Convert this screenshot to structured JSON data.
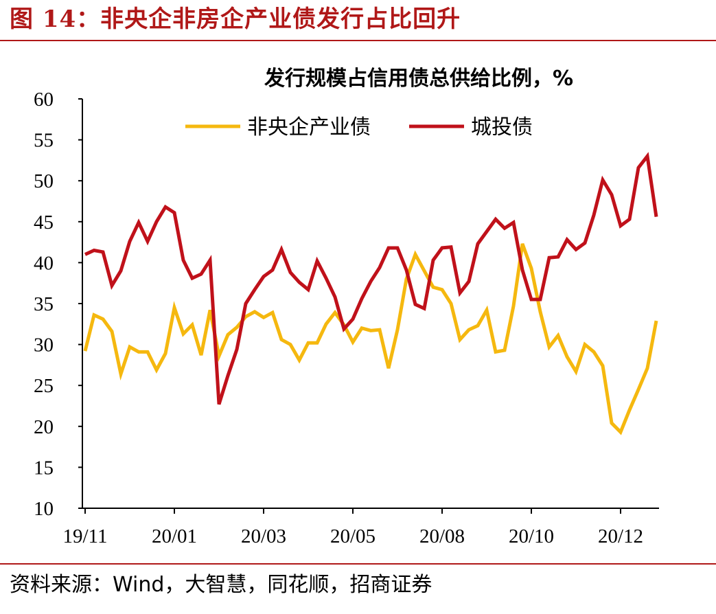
{
  "figure": {
    "label": "图 14：非央企非房企产业债发行占比回升",
    "source": "资料来源：Wind，大智慧，同花顺，招商证券"
  },
  "chart_data": {
    "type": "line",
    "title": "发行规模占信用债总供给比例，%",
    "xlabel": "",
    "ylabel": "",
    "ylim": [
      10,
      60
    ],
    "y_ticks": [
      "60",
      "55",
      "50",
      "45",
      "40",
      "35",
      "30",
      "25",
      "20",
      "15",
      "10"
    ],
    "x_tick_labels": [
      "19/11",
      "20/01",
      "20/03",
      "20/05",
      "20/08",
      "20/10",
      "20/12"
    ],
    "x_tick_indices": [
      0,
      10,
      20,
      30,
      40,
      50,
      60
    ],
    "grid": false,
    "legend_position": "top",
    "colors": {
      "非央企产业债": "#f5b80f",
      "城投债": "#c0111a"
    },
    "series": [
      {
        "name": "非央企产业债",
        "values": [
          29.2,
          33.6,
          33.1,
          31.6,
          26.4,
          29.7,
          29.1,
          29.1,
          26.9,
          28.9,
          34.5,
          31.3,
          32.4,
          28.7,
          34.2,
          28.6,
          31.2,
          32.1,
          33.4,
          34.0,
          33.3,
          33.9,
          30.6,
          30.0,
          28.1,
          30.2,
          30.2,
          32.5,
          33.9,
          32.4,
          30.3,
          32.0,
          31.7,
          31.8,
          27.1,
          31.8,
          38.0,
          41.0,
          39.0,
          37.0,
          36.7,
          35.0,
          30.6,
          31.8,
          32.3,
          34.2,
          29.1,
          29.3,
          34.7,
          42.3,
          39.3,
          34.0,
          29.7,
          31.1,
          28.5,
          26.7,
          30.0,
          29.1,
          27.4,
          20.4,
          19.3,
          22.0,
          24.5,
          27.1,
          32.9
        ]
      },
      {
        "name": "城投债",
        "values": [
          41.0,
          41.5,
          41.3,
          37.2,
          39.0,
          42.6,
          44.9,
          42.6,
          45.0,
          46.8,
          46.1,
          40.3,
          38.1,
          38.6,
          40.3,
          22.7,
          26.2,
          29.4,
          35.0,
          36.7,
          38.3,
          39.1,
          41.6,
          38.8,
          37.6,
          36.7,
          40.2,
          38.1,
          35.8,
          31.9,
          33.1,
          35.6,
          37.7,
          39.4,
          41.8,
          41.8,
          39.1,
          34.9,
          34.4,
          40.3,
          41.8,
          41.9,
          36.3,
          37.7,
          42.3,
          43.8,
          45.3,
          44.2,
          44.9,
          39.1,
          35.5,
          35.5,
          40.6,
          40.7,
          42.8,
          41.6,
          42.4,
          45.8,
          50.1,
          48.3,
          44.5,
          45.3,
          51.6,
          53.0,
          45.6
        ]
      }
    ]
  }
}
